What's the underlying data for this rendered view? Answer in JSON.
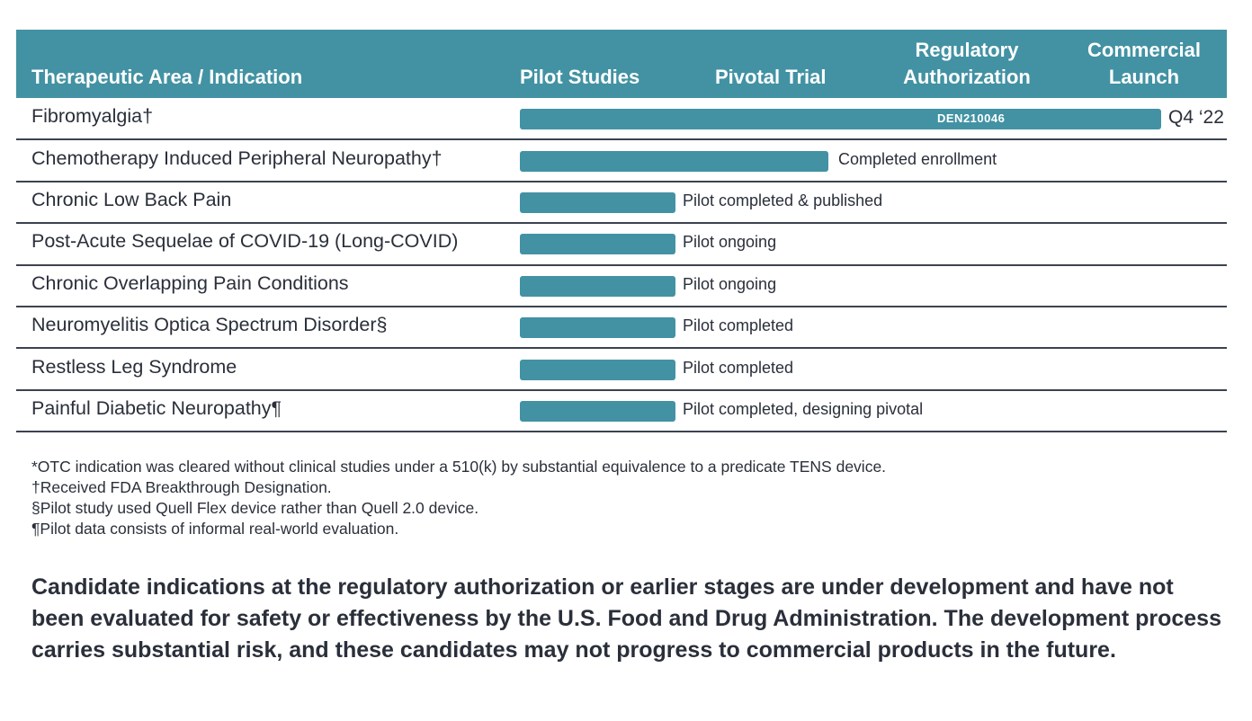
{
  "columns": {
    "indication": "Therapeutic Area / Indication",
    "pilot": "Pilot Studies",
    "pivotal": "Pivotal Trial",
    "regulatory_line1": "Regulatory",
    "regulatory_line2": "Authorization",
    "commercial_line1": "Commercial",
    "commercial_line2": "Launch"
  },
  "chart_data": {
    "type": "table",
    "stages": [
      "Pilot Studies",
      "Pivotal Trial",
      "Regulatory Authorization",
      "Commercial Launch"
    ],
    "rows": [
      {
        "indication": "Fibromyalgia†",
        "progress": 4.0,
        "note": "",
        "bar_text": "DEN210046",
        "end_label": "Q4 ‘22"
      },
      {
        "indication": "Chemotherapy Induced Peripheral Neuropathy†",
        "progress": 2.0,
        "note": "Completed enrollment",
        "bar_text": "",
        "end_label": ""
      },
      {
        "indication": "Chronic Low Back Pain",
        "progress": 1.0,
        "note": "Pilot completed & published",
        "bar_text": "",
        "end_label": ""
      },
      {
        "indication": "Post-Acute Sequelae of COVID-19 (Long-COVID)",
        "progress": 1.0,
        "note": "Pilot ongoing",
        "bar_text": "",
        "end_label": ""
      },
      {
        "indication": "Chronic Overlapping Pain Conditions",
        "progress": 1.0,
        "note": "Pilot ongoing",
        "bar_text": "",
        "end_label": ""
      },
      {
        "indication": "Neuromyelitis Optica Spectrum Disorder§",
        "progress": 1.0,
        "note": "Pilot completed",
        "bar_text": "",
        "end_label": ""
      },
      {
        "indication": "Restless Leg Syndrome",
        "progress": 1.0,
        "note": "Pilot completed",
        "bar_text": "",
        "end_label": ""
      },
      {
        "indication": "Painful Diabetic Neuropathy¶",
        "progress": 1.0,
        "note": "Pilot completed, designing pivotal",
        "bar_text": "",
        "end_label": ""
      }
    ]
  },
  "colors": {
    "accent": "#4292a3",
    "text": "#2a2f3a",
    "rule": "#3b4350"
  },
  "footnotes": [
    "*OTC indication was cleared without clinical studies under a 510(k) by substantial equivalence to a predicate TENS device.",
    "†Received FDA Breakthrough Designation.",
    "§Pilot study used Quell Flex device rather than Quell 2.0 device.",
    "¶Pilot data consists of informal real-world evaluation."
  ],
  "disclaimer": "Candidate indications at the regulatory authorization or earlier stages are under development and have not been evaluated for safety or effectiveness by the U.S. Food and Drug Administration. The development process carries substantial risk, and these candidates may not progress to commercial products in the future."
}
